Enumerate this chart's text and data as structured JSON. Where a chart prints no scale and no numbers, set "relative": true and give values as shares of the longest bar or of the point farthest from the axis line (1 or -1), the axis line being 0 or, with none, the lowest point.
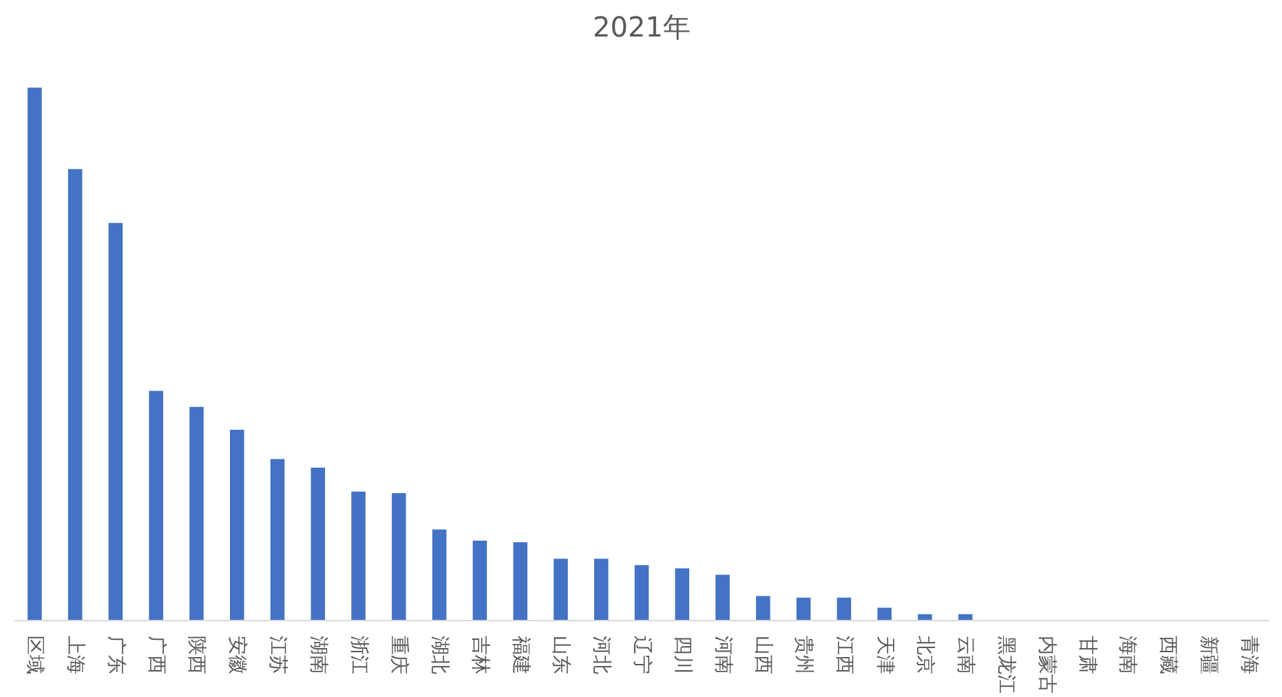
{
  "chart_data": {
    "type": "bar",
    "title": "2021年",
    "relative": true,
    "color": "#4472c4",
    "categories": [
      "区域",
      "上海",
      "广东",
      "广西",
      "陕西",
      "安徽",
      "江苏",
      "湖南",
      "浙江",
      "重庆",
      "湖北",
      "吉林",
      "福建",
      "山东",
      "河北",
      "辽宁",
      "四川",
      "河南",
      "山西",
      "贵州",
      "江西",
      "天津",
      "北京",
      "云南",
      "黑龙江",
      "内蒙古",
      "甘肃",
      "海南",
      "西藏",
      "新疆",
      "青海"
    ],
    "values": [
      1.0,
      0.847,
      0.746,
      0.431,
      0.401,
      0.358,
      0.303,
      0.287,
      0.242,
      0.239,
      0.171,
      0.15,
      0.147,
      0.116,
      0.116,
      0.104,
      0.098,
      0.086,
      0.046,
      0.043,
      0.043,
      0.024,
      0.012,
      0.012,
      0,
      0,
      0,
      0,
      0,
      0,
      0
    ]
  }
}
